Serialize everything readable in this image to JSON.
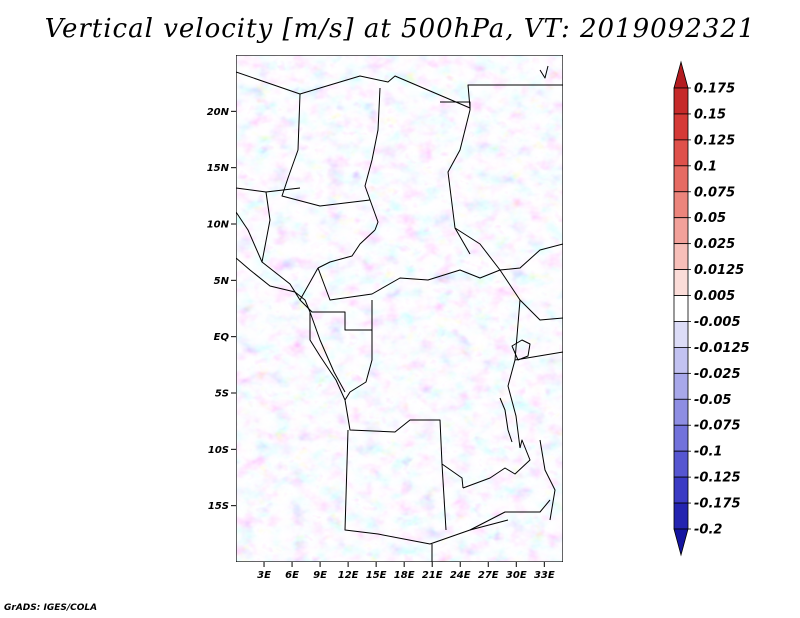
{
  "title": "Vertical velocity [m/s] at 500hPa, VT: 2019092321",
  "credit": "GrADS: IGES/COLA",
  "chart_data": {
    "type": "heatmap",
    "title": "Vertical velocity [m/s] at 500hPa, VT: 2019092321",
    "variable": "Vertical velocity",
    "units": "m/s",
    "level": "500hPa",
    "valid_time": "2019092321",
    "xlim": [
      0,
      35
    ],
    "ylim": [
      -20,
      25
    ],
    "x_ticks": [
      {
        "value": 3,
        "label": "3E"
      },
      {
        "value": 6,
        "label": "6E"
      },
      {
        "value": 9,
        "label": "9E"
      },
      {
        "value": 12,
        "label": "12E"
      },
      {
        "value": 15,
        "label": "15E"
      },
      {
        "value": 18,
        "label": "18E"
      },
      {
        "value": 21,
        "label": "21E"
      },
      {
        "value": 24,
        "label": "24E"
      },
      {
        "value": 27,
        "label": "27E"
      },
      {
        "value": 30,
        "label": "30E"
      },
      {
        "value": 33,
        "label": "33E"
      }
    ],
    "y_ticks": [
      {
        "value": 20,
        "label": "20N"
      },
      {
        "value": 15,
        "label": "15N"
      },
      {
        "value": 10,
        "label": "10N"
      },
      {
        "value": 5,
        "label": "5N"
      },
      {
        "value": 0,
        "label": "EQ"
      },
      {
        "value": -5,
        "label": "5S"
      },
      {
        "value": -10,
        "label": "10S"
      },
      {
        "value": -15,
        "label": "15S"
      }
    ],
    "colorbar": {
      "labels": [
        "0.175",
        "0.15",
        "0.125",
        "0.1",
        "0.075",
        "0.05",
        "0.025",
        "0.0125",
        "0.005",
        "-0.005",
        "-0.0125",
        "-0.025",
        "-0.05",
        "-0.075",
        "-0.1",
        "-0.125",
        "-0.175",
        "-0.2"
      ],
      "colors": [
        "#b31c20",
        "#c62a2a",
        "#d53a37",
        "#df514b",
        "#e66b63",
        "#ec857c",
        "#f2a19a",
        "#f7bfb9",
        "#fbdcd8",
        "#ffffff",
        "#dcdcf7",
        "#c2c2f1",
        "#a8a8ea",
        "#8e8ee3",
        "#7272db",
        "#5656d1",
        "#3b3bc4",
        "#2424b0",
        "#1414a0"
      ]
    },
    "grid": false
  }
}
